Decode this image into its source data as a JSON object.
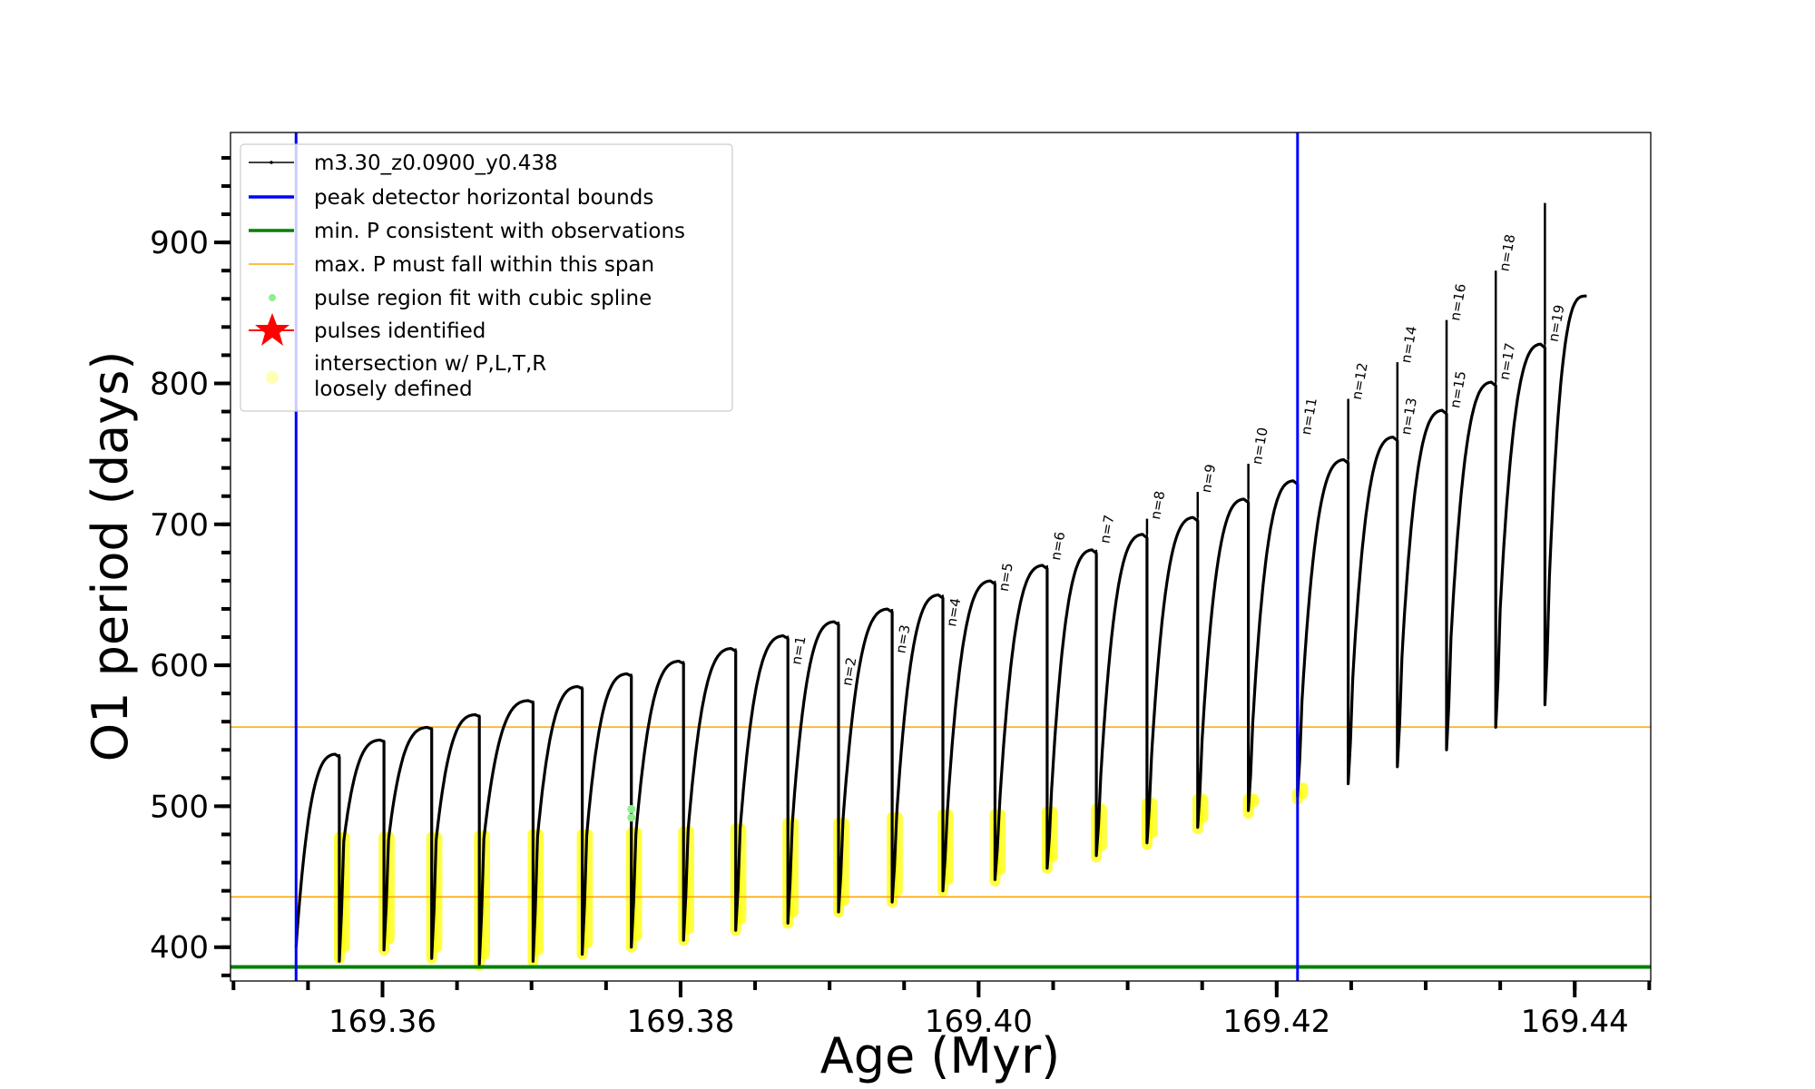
{
  "chart_data": {
    "type": "line",
    "xlabel": "Age (Myr)",
    "ylabel": "O1 period (days)",
    "xlim": [
      169.3498,
      169.4451
    ],
    "ylim": [
      376,
      978
    ],
    "x_ticks": [
      "169.36",
      "169.38",
      "169.40",
      "169.42",
      "169.44"
    ],
    "x_tick_values": [
      169.36,
      169.38,
      169.4,
      169.42,
      169.44
    ],
    "x_minor_step": 0.005,
    "y_ticks": [
      "400",
      "500",
      "600",
      "700",
      "800",
      "900"
    ],
    "y_tick_values": [
      400,
      500,
      600,
      700,
      800,
      900
    ],
    "y_minor_step": 20,
    "grid": false,
    "legend_placement": "upper-left",
    "legend": [
      {
        "label": "m3.30_z0.0900_y0.438",
        "style": "line-dot",
        "color": "#000000"
      },
      {
        "label": "peak detector horizontal bounds",
        "style": "line-thick",
        "color": "#0000ff"
      },
      {
        "label": "min. P consistent with observations",
        "style": "line-thick",
        "color": "#008000"
      },
      {
        "label": "max. P must fall within this span",
        "style": "line-thin",
        "color": "#ffa500"
      },
      {
        "label": "pulse region fit with cubic spline",
        "style": "dot",
        "color": "#90ee90"
      },
      {
        "label": "pulses identified",
        "style": "star",
        "color": "#ff0000"
      },
      {
        "label": "intersection w/ P,L,T,R",
        "label2": "loosely defined",
        "style": "big-dot",
        "color": "#ffffa0"
      }
    ],
    "vertical_bounds": {
      "series": "peak detector horizontal bounds",
      "x": [
        169.3542,
        169.4214
      ],
      "color": "#0000ff"
    },
    "min_period": {
      "series": "min. P consistent with observations",
      "y": 386,
      "color": "#008000"
    },
    "max_period_span": {
      "series": "max. P must fall within this span",
      "y": [
        435.7,
        556.2
      ],
      "color": "#ffa500"
    },
    "model_series": {
      "name": "m3.30_z0.0900_y0.438",
      "color": "#000000",
      "start": {
        "age": 169.3542,
        "period": 400
      },
      "end": {
        "age": 169.4408,
        "period": 862
      },
      "pulses": [
        {
          "age": 169.3571,
          "peak": 537,
          "min": 390,
          "recover": 475,
          "yellow": [
            392,
            478
          ]
        },
        {
          "age": 169.3601,
          "peak": 547,
          "min": 398,
          "recover": 476,
          "yellow": [
            398,
            478
          ]
        },
        {
          "age": 169.3633,
          "peak": 556,
          "min": 392,
          "recover": 476,
          "yellow": [
            392,
            478
          ]
        },
        {
          "age": 169.3665,
          "peak": 565,
          "min": 388,
          "recover": 477,
          "yellow": [
            387,
            479
          ]
        },
        {
          "age": 169.3701,
          "peak": 575,
          "min": 390,
          "recover": 478,
          "yellow": [
            390,
            480
          ]
        },
        {
          "age": 169.3734,
          "peak": 585,
          "min": 395,
          "recover": 479,
          "yellow": [
            395,
            480
          ]
        },
        {
          "age": 169.3767,
          "peak": 594,
          "min": 400,
          "recover": 480,
          "yellow": [
            400,
            481
          ]
        },
        {
          "age": 169.3802,
          "peak": 603,
          "min": 405,
          "recover": 482,
          "yellow": [
            405,
            482
          ]
        },
        {
          "age": 169.3837,
          "peak": 612,
          "min": 412,
          "recover": 484,
          "yellow": [
            412,
            484
          ]
        },
        {
          "age": 169.3872,
          "peak": 621,
          "min": 417,
          "recover": 488,
          "yellow": [
            417,
            488
          ]
        },
        {
          "age": 169.3906,
          "peak": 631,
          "min": 425,
          "recover": 490,
          "yellow": [
            425,
            488
          ]
        },
        {
          "age": 169.3942,
          "peak": 640,
          "min": 432,
          "recover": 494,
          "yellow": [
            432,
            492
          ]
        },
        {
          "age": 169.3976,
          "peak": 650,
          "min": 440,
          "recover": 496,
          "yellow": [
            440,
            494
          ]
        },
        {
          "age": 169.4011,
          "peak": 660,
          "min": 448,
          "recover": 500,
          "yellow": [
            447,
            494
          ]
        },
        {
          "age": 169.4046,
          "peak": 671,
          "min": 456,
          "recover": 512,
          "yellow": [
            456,
            496
          ]
        },
        {
          "age": 169.4079,
          "peak": 682,
          "min": 465,
          "recover": 522,
          "yellow": [
            464,
            498
          ]
        },
        {
          "age": 169.4113,
          "peak": 693,
          "min": 474,
          "recover": 535,
          "spike": 704,
          "yellow": [
            473,
            502
          ]
        },
        {
          "age": 169.4147,
          "peak": 705,
          "min": 485,
          "recover": 548,
          "spike": 723,
          "yellow": [
            484,
            505
          ]
        },
        {
          "age": 169.4181,
          "peak": 718,
          "min": 497,
          "recover": 560,
          "spike": 743,
          "yellow": [
            495,
            505
          ]
        },
        {
          "age": 169.4214,
          "peak": 731,
          "min": 507,
          "recover": 575,
          "spike": 765,
          "yellow": [
            505,
            509
          ]
        },
        {
          "age": 169.4248,
          "peak": 746,
          "min": 516,
          "recover": 590,
          "spike": 789
        },
        {
          "age": 169.4281,
          "peak": 762,
          "min": 528,
          "recover": 605,
          "spike": 815
        },
        {
          "age": 169.4314,
          "peak": 781,
          "min": 540,
          "recover": 620,
          "spike": 845
        },
        {
          "age": 169.4347,
          "peak": 801,
          "min": 556,
          "recover": 640,
          "spike": 880
        },
        {
          "age": 169.438,
          "peak": 828,
          "min": 572,
          "recover": 662,
          "spike": 928
        }
      ]
    },
    "spline_points": {
      "series": "pulse region fit with cubic spline",
      "color": "#90ee90",
      "points": [
        {
          "age": 169.3767,
          "period": 492
        },
        {
          "age": 169.3767,
          "period": 498
        }
      ]
    },
    "pulse_labels": [
      {
        "text": "n=1",
        "age": 169.3872,
        "period": 600
      },
      {
        "text": "n=2",
        "age": 169.3906,
        "period": 585
      },
      {
        "text": "n=3",
        "age": 169.3942,
        "period": 608
      },
      {
        "text": "n=4",
        "age": 169.3976,
        "period": 627
      },
      {
        "text": "n=5",
        "age": 169.4011,
        "period": 652
      },
      {
        "text": "n=6",
        "age": 169.4046,
        "period": 674
      },
      {
        "text": "n=7",
        "age": 169.4079,
        "period": 686
      },
      {
        "text": "n=8",
        "age": 169.4113,
        "period": 703
      },
      {
        "text": "n=9",
        "age": 169.4147,
        "period": 722
      },
      {
        "text": "n=10",
        "age": 169.4181,
        "period": 742
      },
      {
        "text": "n=11",
        "age": 169.4214,
        "period": 763
      },
      {
        "text": "n=12",
        "age": 169.4248,
        "period": 788
      },
      {
        "text": "n=13",
        "age": 169.4281,
        "period": 763
      },
      {
        "text": "n=14",
        "age": 169.4281,
        "period": 814
      },
      {
        "text": "n=15",
        "age": 169.4314,
        "period": 782
      },
      {
        "text": "n=16",
        "age": 169.4314,
        "period": 844
      },
      {
        "text": "n=17",
        "age": 169.4347,
        "period": 802
      },
      {
        "text": "n=18",
        "age": 169.4347,
        "period": 879
      },
      {
        "text": "n=19",
        "age": 169.438,
        "period": 829
      }
    ]
  }
}
